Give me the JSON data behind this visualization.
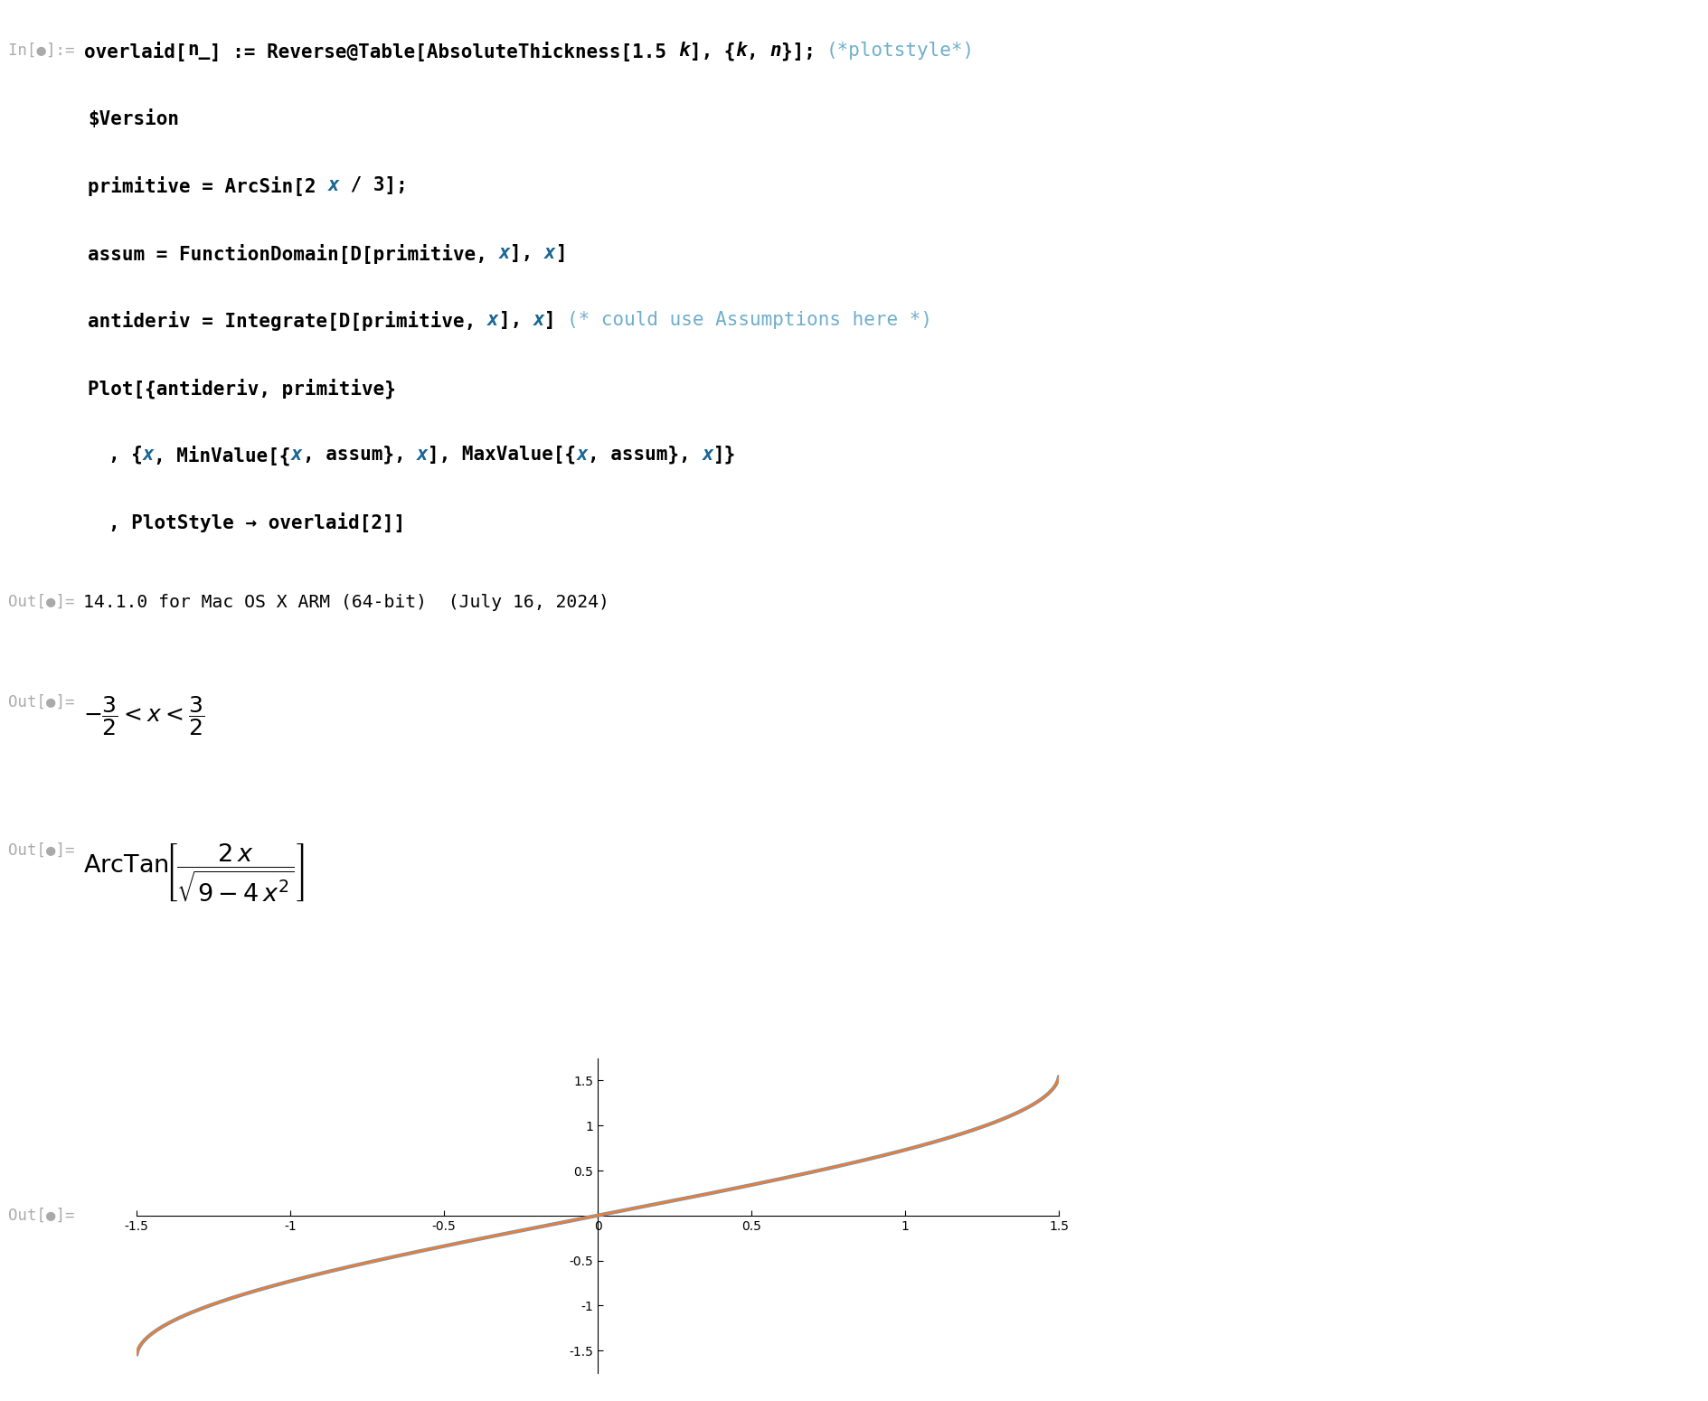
{
  "background_color": "#ffffff",
  "out1_text": "14.1.0 for Mac OS X ARM (64-bit)  (July 16, 2024)",
  "plot_xlim": [
    -1.5,
    1.5
  ],
  "plot_ylim": [
    -1.75,
    1.75
  ],
  "plot_xticks": [
    -1.5,
    -1.0,
    -0.5,
    0.0,
    0.5,
    1.0,
    1.5
  ],
  "plot_yticks": [
    -1.5,
    -1.0,
    -0.5,
    0.5,
    1.0,
    1.5
  ],
  "curve1_color": "#5b9bd5",
  "curve1_lw": 3.0,
  "curve2_color": "#ed7d31",
  "curve2_lw": 2.0,
  "fig_width": 18.89,
  "fig_height": 15.5,
  "mono_font": "DejaVu Sans Mono",
  "code_fontsize": 15.0,
  "out_prefix_fontsize": 12.5,
  "gray_color": "#aaaaaa",
  "comment_color": "#6faecc",
  "blue_color": "#1a6696",
  "black_color": "#000000"
}
